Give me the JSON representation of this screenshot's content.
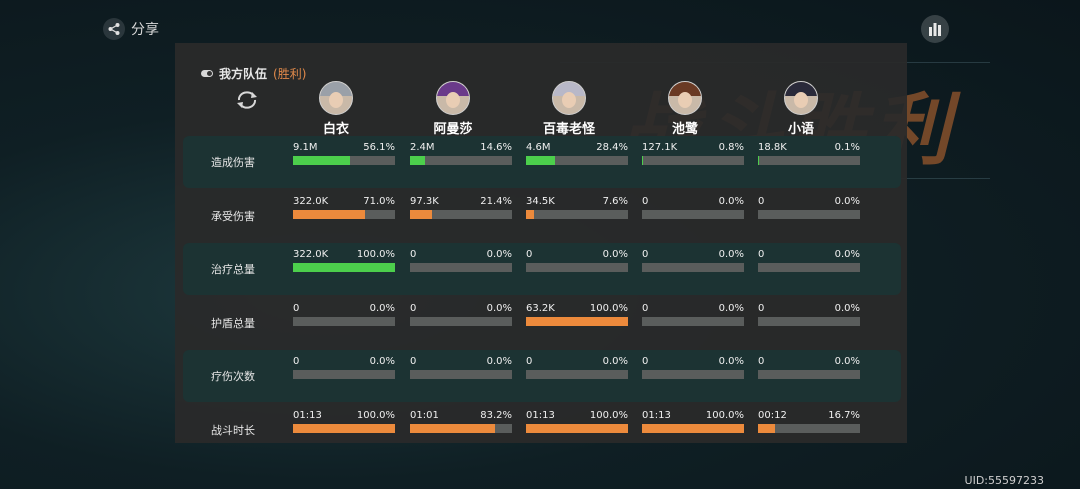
{
  "header": {
    "share_label": "分享",
    "uid": "UID:55597233",
    "bg_title": "战斗胜利"
  },
  "team": {
    "label": "我方队伍",
    "result": "(胜利)"
  },
  "colors": {
    "green": "#4ccf4c",
    "orange": "#ec8a3c",
    "track": "#5a5d5c",
    "accent": "#e0894a"
  },
  "heroes": [
    {
      "name": "白衣",
      "hair": "#9aa0a8"
    },
    {
      "name": "阿曼莎",
      "hair": "#6a3a8a"
    },
    {
      "name": "百毒老怪",
      "hair": "#b8b8c8"
    },
    {
      "name": "池鹭",
      "hair": "#6a3a24"
    },
    {
      "name": "小语",
      "hair": "#2a2a3a"
    }
  ],
  "stats": [
    {
      "label": "造成伤害",
      "color": "green",
      "shaded": true,
      "cells": [
        {
          "value": "9.1M",
          "percent": "56.1%",
          "frac": 0.561
        },
        {
          "value": "2.4M",
          "percent": "14.6%",
          "frac": 0.146
        },
        {
          "value": "4.6M",
          "percent": "28.4%",
          "frac": 0.284
        },
        {
          "value": "127.1K",
          "percent": "0.8%",
          "frac": 0.008
        },
        {
          "value": "18.8K",
          "percent": "0.1%",
          "frac": 0.001
        }
      ]
    },
    {
      "label": "承受伤害",
      "color": "orange",
      "shaded": false,
      "cells": [
        {
          "value": "322.0K",
          "percent": "71.0%",
          "frac": 0.71
        },
        {
          "value": "97.3K",
          "percent": "21.4%",
          "frac": 0.214
        },
        {
          "value": "34.5K",
          "percent": "7.6%",
          "frac": 0.076
        },
        {
          "value": "0",
          "percent": "0.0%",
          "frac": 0
        },
        {
          "value": "0",
          "percent": "0.0%",
          "frac": 0
        }
      ]
    },
    {
      "label": "治疗总量",
      "color": "green",
      "shaded": true,
      "cells": [
        {
          "value": "322.0K",
          "percent": "100.0%",
          "frac": 1.0
        },
        {
          "value": "0",
          "percent": "0.0%",
          "frac": 0
        },
        {
          "value": "0",
          "percent": "0.0%",
          "frac": 0
        },
        {
          "value": "0",
          "percent": "0.0%",
          "frac": 0
        },
        {
          "value": "0",
          "percent": "0.0%",
          "frac": 0
        }
      ]
    },
    {
      "label": "护盾总量",
      "color": "orange",
      "shaded": false,
      "cells": [
        {
          "value": "0",
          "percent": "0.0%",
          "frac": 0
        },
        {
          "value": "0",
          "percent": "0.0%",
          "frac": 0
        },
        {
          "value": "63.2K",
          "percent": "100.0%",
          "frac": 1.0
        },
        {
          "value": "0",
          "percent": "0.0%",
          "frac": 0
        },
        {
          "value": "0",
          "percent": "0.0%",
          "frac": 0
        }
      ]
    },
    {
      "label": "疗伤次数",
      "color": "green",
      "shaded": true,
      "cells": [
        {
          "value": "0",
          "percent": "0.0%",
          "frac": 0
        },
        {
          "value": "0",
          "percent": "0.0%",
          "frac": 0
        },
        {
          "value": "0",
          "percent": "0.0%",
          "frac": 0
        },
        {
          "value": "0",
          "percent": "0.0%",
          "frac": 0
        },
        {
          "value": "0",
          "percent": "0.0%",
          "frac": 0
        }
      ]
    },
    {
      "label": "战斗时长",
      "color": "orange",
      "shaded": false,
      "cells": [
        {
          "value": "01:13",
          "percent": "100.0%",
          "frac": 1.0
        },
        {
          "value": "01:01",
          "percent": "83.2%",
          "frac": 0.832
        },
        {
          "value": "01:13",
          "percent": "100.0%",
          "frac": 1.0
        },
        {
          "value": "01:13",
          "percent": "100.0%",
          "frac": 1.0
        },
        {
          "value": "00:12",
          "percent": "16.7%",
          "frac": 0.167
        }
      ]
    }
  ]
}
